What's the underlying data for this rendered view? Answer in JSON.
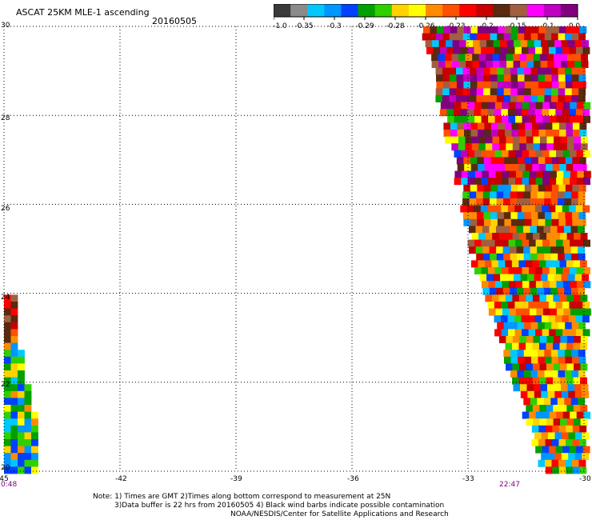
{
  "header": {
    "title": "ASCAT 25KM MLE-1 ascending",
    "date": "20160505"
  },
  "legend": {
    "labels": [
      "-1.0",
      "-0.35",
      "-0.3",
      "-0.29",
      "-0.28",
      "-0.26",
      "-0.23",
      "-0.2",
      "-0.15",
      "-0.1",
      "0.0"
    ],
    "colors": [
      "#3a3a3a",
      "#8a8a8a",
      "#00c8ff",
      "#0096ff",
      "#0040ff",
      "#00a000",
      "#30d000",
      "#ffd200",
      "#ffff00",
      "#ff8c00",
      "#ff5000",
      "#ff0000",
      "#c80000",
      "#5a2a10",
      "#a06040",
      "#ff00ff",
      "#c000c0",
      "#800080"
    ]
  },
  "map": {
    "lat_ticks": [
      "30",
      "28",
      "26",
      "24",
      "22",
      "20"
    ],
    "lon_ticks": [
      "-45",
      "-42",
      "-39",
      "-36",
      "-33",
      "-30"
    ],
    "times": [
      "0:48",
      "22:47"
    ],
    "lon_range": [
      -45,
      -30
    ],
    "lat_range": [
      20,
      30
    ],
    "swath_colors": [
      "#0040ff",
      "#0096ff",
      "#00c8ff",
      "#00a000",
      "#30d000",
      "#ffd200",
      "#ffff00",
      "#ff8c00",
      "#ff5000",
      "#ff0000",
      "#c80000",
      "#5a2a10",
      "#a06040",
      "#ff00ff",
      "#c000c0",
      "#800080"
    ]
  },
  "notes": {
    "line1": "Note: 1) Times are GMT 2)Times along bottom correspond to measurement at 25N",
    "line2": "3)Data buffer is 22 hrs from 20160505 4) Black wind barbs indicate possible contamination",
    "line3": "NOAA/NESDIS/Center for Satellite Applications and Research"
  }
}
